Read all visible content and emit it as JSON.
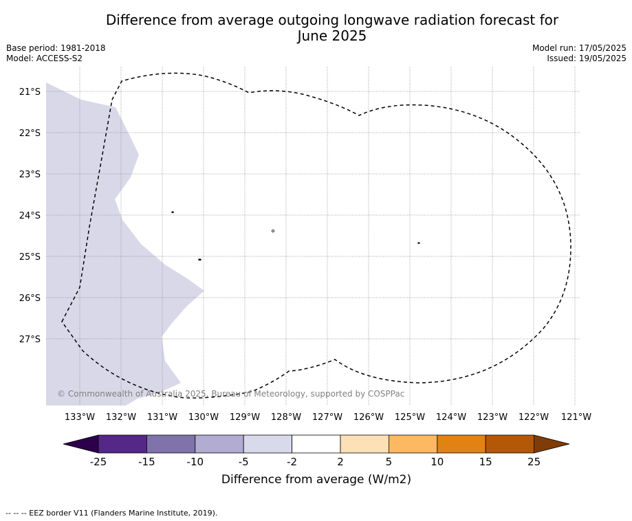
{
  "title_lines": [
    "Difference from average outgoing longwave radiation forecast for",
    "June 2025"
  ],
  "meta": {
    "base_period": "Base period: 1981-2018",
    "model": "Model: ACCESS-S2",
    "model_run": "Model run: 17/05/2025",
    "issued": "Issued: 19/05/2025"
  },
  "map": {
    "longitude_ticks": [
      "133°W",
      "132°W",
      "131°W",
      "130°W",
      "129°W",
      "128°W",
      "127°W",
      "126°W",
      "125°W",
      "124°W",
      "123°W",
      "122°W",
      "121°W"
    ],
    "latitude_ticks": [
      "21°S",
      "22°S",
      "23°S",
      "24°S",
      "25°S",
      "26°S",
      "27°S"
    ],
    "copyright": "© Commonwealth of Australia 2025, Bureau of Meteorology, supported by COSPPac",
    "shaded_region_category": "-5 to -2",
    "shaded_region_color": "#d8d8e9",
    "eez_border_style": "black dashed line",
    "grid": "dotted gridlines"
  },
  "colorbar": {
    "tick_labels": [
      "-25",
      "-15",
      "-10",
      "-5",
      "-2",
      "2",
      "5",
      "10",
      "15",
      "25"
    ],
    "colors": [
      "#542788",
      "#8073ac",
      "#b2abd2",
      "#d8daeb",
      "#ffffff",
      "#fee0b6",
      "#fdb863",
      "#e08214",
      "#b35806"
    ],
    "under_color": "#2d004b",
    "over_color": "#7f3b08",
    "label": "Difference from average (W/m2)"
  },
  "footer": "--  --  -- EEZ border V11 (Flanders Marine Institute, 2019)."
}
